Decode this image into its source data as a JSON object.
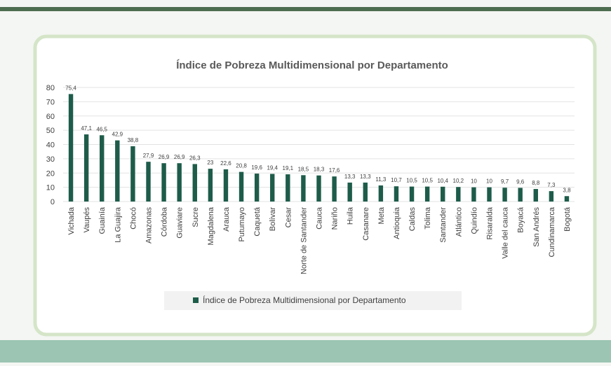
{
  "chart_data": {
    "type": "bar",
    "title": "Índice de Pobreza Multidimensional por Departamento",
    "categories": [
      "Vichada",
      "Vaupés",
      "Guainía",
      "La Guajira",
      "Chocó",
      "Amazonas",
      "Córdoba",
      "Guaviare",
      "Sucre",
      "Magdalena",
      "Arauca",
      "Putumayo",
      "Caquetá",
      "Bolívar",
      "Cesar",
      "Norte de Santander",
      "Cauca",
      "Nariño",
      "Huila",
      "Casanare",
      "Meta",
      "Antioquia",
      "Caldas",
      "Tolima",
      "Santander",
      "Atlántico",
      "Quindío",
      "Risaralda",
      "Valle del cauca",
      "Boyacá",
      "San Andrés",
      "Cundinamarca",
      "Bogotá"
    ],
    "series": [
      {
        "name": "Índice de Pobreza Multidimensional por Departamento",
        "color": "#1e5c4a",
        "values": [
          75.4,
          47.1,
          46.5,
          42.9,
          38.8,
          27.9,
          26.9,
          26.9,
          26.3,
          23,
          22.6,
          20.8,
          19.6,
          19.4,
          19.1,
          18.5,
          18.3,
          17.6,
          13.3,
          13.3,
          11.3,
          10.7,
          10.5,
          10.5,
          10.4,
          10.2,
          10,
          10,
          9.7,
          9.6,
          8.8,
          7.3,
          3.8
        ],
        "value_labels": [
          "75,4",
          "47,1",
          "46,5",
          "42,9",
          "38,8",
          "27,9",
          "26,9",
          "26,9",
          "26,3",
          "23",
          "22,6",
          "20,8",
          "19,6",
          "19,4",
          "19,1",
          "18,5",
          "18,3",
          "17,6",
          "13,3",
          "13,3",
          "11,3",
          "10,7",
          "10,5",
          "10,5",
          "10,4",
          "10,2",
          "10",
          "10",
          "9,7",
          "9,6",
          "8,8",
          "7,3",
          "3,8"
        ]
      }
    ],
    "ylim": [
      0,
      80
    ],
    "yticks": [
      0,
      10,
      20,
      30,
      40,
      50,
      60,
      70,
      80
    ],
    "grid": true,
    "legend": "bottom"
  }
}
